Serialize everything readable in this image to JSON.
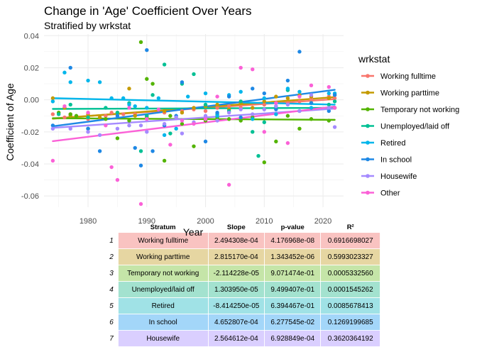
{
  "chart_data": {
    "type": "scatter",
    "title": "Change in 'Age' Coefficient Over Years",
    "subtitle": "Stratified by wrkstat",
    "xlabel": "Year",
    "ylabel": "Coefficient of Age",
    "xlim": [
      1972.5,
      2023.5
    ],
    "ylim": [
      -0.067,
      0.041
    ],
    "xticks": [
      1980,
      1990,
      2000,
      2010,
      2020
    ],
    "yticks": [
      -0.06,
      -0.04,
      -0.02,
      0.0,
      0.02,
      0.04
    ],
    "ytick_labels": [
      "-0.06",
      "-0.04",
      "-0.02",
      "0.00",
      "0.02",
      "0.04"
    ],
    "grid": true,
    "legend_title": "wrkstat",
    "legend_placement": "right",
    "series": [
      {
        "name": "Working fulltime",
        "color": "#F8766D",
        "fit": [
          [
            1974,
            -0.0116
          ],
          [
            2022,
            0.0004
          ]
        ],
        "points": [
          [
            1974,
            -0.009
          ],
          [
            1976,
            -0.011
          ],
          [
            1977,
            -0.009
          ],
          [
            1980,
            -0.012
          ],
          [
            1983,
            -0.01
          ],
          [
            1984,
            -0.008
          ],
          [
            1986,
            -0.009
          ],
          [
            1988,
            -0.009
          ],
          [
            1990,
            -0.01
          ],
          [
            1993,
            -0.008
          ],
          [
            1996,
            -0.007
          ],
          [
            1998,
            -0.006
          ],
          [
            2000,
            -0.007
          ],
          [
            2002,
            -0.005
          ],
          [
            2004,
            -0.004
          ],
          [
            2006,
            -0.005
          ],
          [
            2008,
            -0.005
          ],
          [
            2010,
            -0.003
          ],
          [
            2012,
            -0.002
          ],
          [
            2014,
            -0.002
          ],
          [
            2016,
            -0.001
          ],
          [
            2018,
            0.001
          ],
          [
            2021,
            0.002
          ],
          [
            2022,
            0.001
          ]
        ]
      },
      {
        "name": "Working parttime",
        "color": "#C49A00",
        "fit": [
          [
            1974,
            -0.0118
          ],
          [
            2022,
            0.0017
          ]
        ],
        "points": [
          [
            1974,
            0.001
          ],
          [
            1976,
            -0.005
          ],
          [
            1977,
            -0.01
          ],
          [
            1980,
            -0.009
          ],
          [
            1982,
            -0.011
          ],
          [
            1985,
            -0.008
          ],
          [
            1987,
            0.007
          ],
          [
            1988,
            -0.01
          ],
          [
            1990,
            -0.011
          ],
          [
            1993,
            -0.007
          ],
          [
            1996,
            -0.008
          ],
          [
            1998,
            -0.005
          ],
          [
            2000,
            -0.004
          ],
          [
            2002,
            -0.003
          ],
          [
            2004,
            -0.006
          ],
          [
            2006,
            -0.002
          ],
          [
            2008,
            -0.005
          ],
          [
            2010,
            -0.001
          ],
          [
            2012,
            0.002
          ],
          [
            2014,
            0.001
          ],
          [
            2016,
            0.003
          ],
          [
            2018,
            0.002
          ],
          [
            2021,
            0.001
          ],
          [
            2022,
            0.003
          ]
        ]
      },
      {
        "name": "Temporary not working",
        "color": "#53B400",
        "fit": [
          [
            1974,
            -0.0115
          ],
          [
            2022,
            -0.0125
          ]
        ],
        "points": [
          [
            1975,
            -0.008
          ],
          [
            1977,
            -0.009
          ],
          [
            1978,
            -0.01
          ],
          [
            1980,
            -0.018
          ],
          [
            1983,
            -0.012
          ],
          [
            1985,
            -0.024
          ],
          [
            1987,
            -0.013
          ],
          [
            1989,
            0.036
          ],
          [
            1990,
            0.013
          ],
          [
            1991,
            0.01
          ],
          [
            1993,
            -0.038
          ],
          [
            1994,
            -0.01
          ],
          [
            1996,
            -0.015
          ],
          [
            1998,
            -0.029
          ],
          [
            2000,
            -0.013
          ],
          [
            2002,
            -0.011
          ],
          [
            2004,
            -0.012
          ],
          [
            2006,
            -0.013
          ],
          [
            2008,
            -0.011
          ],
          [
            2010,
            -0.039
          ],
          [
            2012,
            -0.026
          ],
          [
            2014,
            -0.01
          ],
          [
            2016,
            -0.018
          ],
          [
            2018,
            -0.012
          ],
          [
            2021,
            -0.013
          ],
          [
            2022,
            -0.005
          ]
        ]
      },
      {
        "name": "Unemployed/laid off",
        "color": "#00C094",
        "fit": [
          [
            1974,
            -0.0057
          ],
          [
            2022,
            -0.005
          ]
        ],
        "points": [
          [
            1975,
            -0.009
          ],
          [
            1977,
            -0.003
          ],
          [
            1980,
            -0.011
          ],
          [
            1983,
            -0.005
          ],
          [
            1985,
            -0.008
          ],
          [
            1987,
            -0.002
          ],
          [
            1989,
            -0.032
          ],
          [
            1990,
            -0.01
          ],
          [
            1991,
            0.003
          ],
          [
            1993,
            0.022
          ],
          [
            1994,
            -0.021
          ],
          [
            1996,
            0.01
          ],
          [
            1998,
            0.016
          ],
          [
            2000,
            -0.003
          ],
          [
            2002,
            -0.009
          ],
          [
            2004,
            -0.007
          ],
          [
            2006,
            -0.001
          ],
          [
            2008,
            -0.02
          ],
          [
            2009,
            -0.035
          ],
          [
            2010,
            -0.014
          ],
          [
            2012,
            -0.004
          ],
          [
            2014,
            0.006
          ],
          [
            2016,
            -0.007
          ],
          [
            2018,
            -0.002
          ],
          [
            2021,
            -0.003
          ],
          [
            2022,
            -0.001
          ]
        ]
      },
      {
        "name": "Retired",
        "color": "#00B6EB",
        "fit": [
          [
            1974,
            0.001
          ],
          [
            2022,
            -0.003
          ]
        ],
        "points": [
          [
            1974,
            -0.001
          ],
          [
            1976,
            0.017
          ],
          [
            1977,
            0.011
          ],
          [
            1980,
            0.012
          ],
          [
            1982,
            0.011
          ],
          [
            1984,
            0.001
          ],
          [
            1986,
            0.001
          ],
          [
            1987,
            -0.003
          ],
          [
            1988,
            -0.004
          ],
          [
            1990,
            -0.005
          ],
          [
            1992,
            0.001
          ],
          [
            1993,
            -0.022
          ],
          [
            1995,
            -0.018
          ],
          [
            1997,
            0.002
          ],
          [
            2000,
            0.004
          ],
          [
            2002,
            -0.01
          ],
          [
            2004,
            0.003
          ],
          [
            2006,
            0.005
          ],
          [
            2008,
            -0.012
          ],
          [
            2010,
            0.001
          ],
          [
            2012,
            -0.009
          ],
          [
            2014,
            0.007
          ],
          [
            2016,
            0.005
          ],
          [
            2018,
            -0.005
          ],
          [
            2021,
            0.004
          ],
          [
            2022,
            0.004
          ]
        ]
      },
      {
        "name": "In school",
        "color": "#1E88E5",
        "fit": [
          [
            1974,
            -0.0165
          ],
          [
            2022,
            0.0062
          ]
        ],
        "points": [
          [
            1974,
            -0.016
          ],
          [
            1977,
            0.02
          ],
          [
            1980,
            -0.018
          ],
          [
            1982,
            -0.032
          ],
          [
            1985,
            -0.01
          ],
          [
            1988,
            -0.03
          ],
          [
            1989,
            -0.041
          ],
          [
            1990,
            0.031
          ],
          [
            1991,
            -0.032
          ],
          [
            1993,
            -0.016
          ],
          [
            1995,
            -0.01
          ],
          [
            1996,
            0.011
          ],
          [
            2000,
            -0.026
          ],
          [
            2002,
            -0.008
          ],
          [
            2004,
            0.002
          ],
          [
            2006,
            -0.011
          ],
          [
            2008,
            0.007
          ],
          [
            2010,
            0.004
          ],
          [
            2012,
            -0.006
          ],
          [
            2014,
            0.012
          ],
          [
            2016,
            0.03
          ],
          [
            2018,
            -0.002
          ],
          [
            2021,
            -0.007
          ],
          [
            2022,
            0.003
          ]
        ]
      },
      {
        "name": "Housewife",
        "color": "#A58AFF",
        "fit": [
          [
            1974,
            -0.0175
          ],
          [
            2022,
            -0.0055
          ]
        ],
        "points": [
          [
            1974,
            -0.018
          ],
          [
            1977,
            -0.018
          ],
          [
            1980,
            -0.02
          ],
          [
            1982,
            -0.022
          ],
          [
            1985,
            -0.018
          ],
          [
            1987,
            -0.016
          ],
          [
            1989,
            -0.016
          ],
          [
            1990,
            -0.02
          ],
          [
            1993,
            -0.015
          ],
          [
            1995,
            -0.011
          ],
          [
            1996,
            -0.021
          ],
          [
            1998,
            -0.014
          ],
          [
            2000,
            -0.01
          ],
          [
            2002,
            -0.013
          ],
          [
            2004,
            -0.008
          ],
          [
            2006,
            -0.006
          ],
          [
            2008,
            -0.009
          ],
          [
            2010,
            -0.006
          ],
          [
            2012,
            -0.004
          ],
          [
            2014,
            -0.003
          ],
          [
            2016,
            -0.007
          ],
          [
            2018,
            0.003
          ],
          [
            2021,
            -0.005
          ],
          [
            2022,
            -0.017
          ]
        ]
      },
      {
        "name": "Other",
        "color": "#FB61D7",
        "fit": [
          [
            1974,
            -0.0258
          ],
          [
            2022,
            -0.0042
          ]
        ],
        "points": [
          [
            1974,
            -0.038
          ],
          [
            1976,
            -0.004
          ],
          [
            1980,
            -0.008
          ],
          [
            1983,
            -0.016
          ],
          [
            1984,
            -0.042
          ],
          [
            1985,
            -0.05
          ],
          [
            1987,
            -0.005
          ],
          [
            1989,
            -0.065
          ],
          [
            1990,
            -0.012
          ],
          [
            1992,
            -0.006
          ],
          [
            1994,
            -0.028
          ],
          [
            1996,
            -0.013
          ],
          [
            1998,
            -0.015
          ],
          [
            2000,
            -0.012
          ],
          [
            2002,
            0.002
          ],
          [
            2004,
            -0.053
          ],
          [
            2006,
            0.02
          ],
          [
            2008,
            0.019
          ],
          [
            2010,
            -0.02
          ],
          [
            2012,
            -0.002
          ],
          [
            2014,
            -0.027
          ],
          [
            2016,
            0.002
          ],
          [
            2018,
            0.009
          ],
          [
            2021,
            0.008
          ],
          [
            2022,
            -0.005
          ]
        ]
      }
    ]
  },
  "table": {
    "headers": [
      "",
      "Stratum",
      "Slope",
      "p-value",
      "R²"
    ],
    "rows": [
      {
        "num": "1",
        "stratum": "Working fulltime",
        "slope": "2.494308e-04",
        "pvalue": "4.176968e-08",
        "r2": "0.6916698027",
        "color": "#F9C3C1"
      },
      {
        "num": "2",
        "stratum": "Working parttime",
        "slope": "2.815170e-04",
        "pvalue": "1.343452e-06",
        "r2": "0.5993023327",
        "color": "#E6D6A2"
      },
      {
        "num": "3",
        "stratum": "Temporary not working",
        "slope": "-2.114228e-05",
        "pvalue": "9.071474e-01",
        "r2": "0.0005332560",
        "color": "#C5E5A8"
      },
      {
        "num": "4",
        "stratum": "Unemployed/laid off",
        "slope": "1.303950e-05",
        "pvalue": "9.499407e-01",
        "r2": "0.0001545262",
        "color": "#A3E2CF"
      },
      {
        "num": "5",
        "stratum": "Retired",
        "slope": "-8.414250e-05",
        "pvalue": "6.394467e-01",
        "r2": "0.0085678413",
        "color": "#A0E2E6"
      },
      {
        "num": "6",
        "stratum": "In school",
        "slope": "4.652807e-04",
        "pvalue": "6.277545e-02",
        "r2": "0.1269199685",
        "color": "#A3D6F9"
      },
      {
        "num": "7",
        "stratum": "Housewife",
        "slope": "2.564612e-04",
        "pvalue": "6.928849e-04",
        "r2": "0.3620364192",
        "color": "#DACFFF"
      }
    ]
  }
}
